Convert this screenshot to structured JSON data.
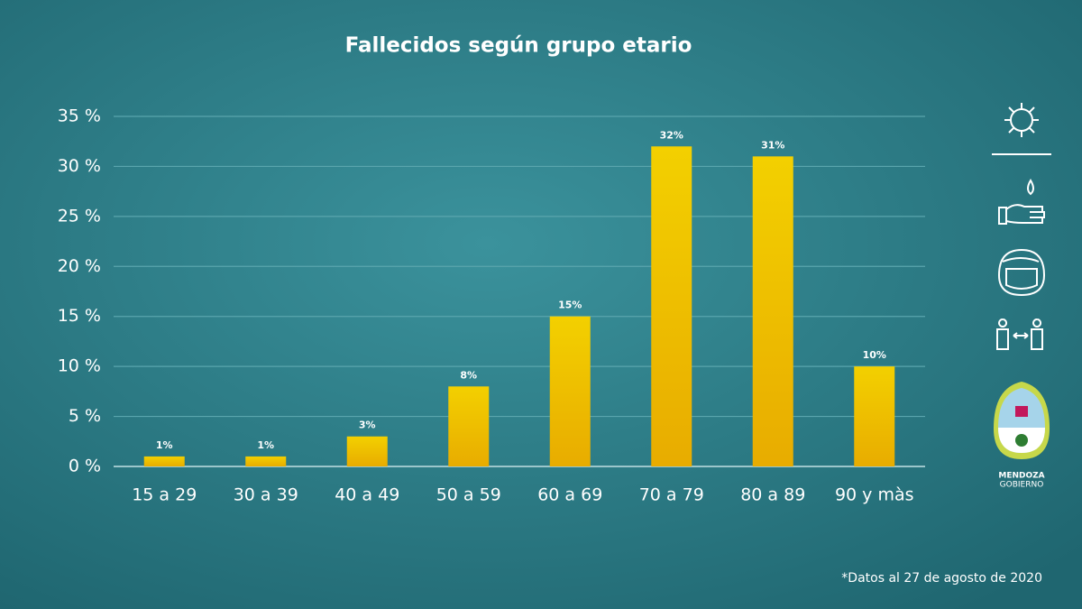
{
  "chart_data": {
    "type": "bar",
    "title": "Fallecidos según grupo etario",
    "categories": [
      "15 a 29",
      "30 a 39",
      "40 a 49",
      "50 a 59",
      "60 a 69",
      "70 a 79",
      "80 a 89",
      "90 y màs"
    ],
    "values": [
      1,
      1,
      3,
      8,
      15,
      32,
      31,
      10
    ],
    "value_labels": [
      "1%",
      "1%",
      "3%",
      "8%",
      "15%",
      "32%",
      "31%",
      "10%"
    ],
    "color": "#f2c500",
    "ylim": [
      0,
      35
    ],
    "yticks": [
      {
        "value": 0,
        "label": "0 %"
      },
      {
        "value": 5,
        "label": "5 %"
      },
      {
        "value": 10,
        "label": "10 %"
      },
      {
        "value": 15,
        "label": "15 %"
      },
      {
        "value": 20,
        "label": "20 %"
      },
      {
        "value": 25,
        "label": "25 %"
      },
      {
        "value": 30,
        "label": "30 %"
      },
      {
        "value": 35,
        "label": "35 %"
      }
    ],
    "grid": true,
    "footnote": "*Datos al 27 de agosto de 2020"
  },
  "logo": {
    "line1": "MENDOZA",
    "line2": "GOBIERNO"
  }
}
